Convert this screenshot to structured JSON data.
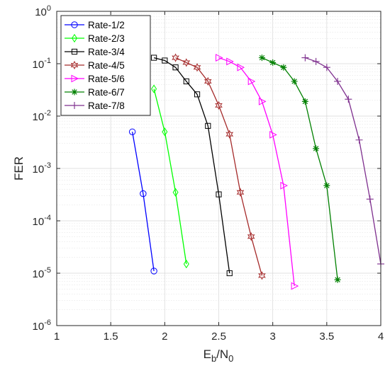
{
  "chart_data": {
    "type": "line",
    "xlabel": "E",
    "xlabel_sub_b": "b",
    "xlabel_mid": "/N",
    "xlabel_sub_0": "0",
    "ylabel": "FER",
    "xlim": [
      1,
      4
    ],
    "ylim_exponents": [
      -6,
      0
    ],
    "yscale": "log",
    "grid": true,
    "legend_placement": "top-left",
    "xticks": [
      "1",
      "1.5",
      "2",
      "2.5",
      "3",
      "3.5",
      "4"
    ],
    "yticks": [
      {
        "base": "10",
        "exp": "0"
      },
      {
        "base": "10",
        "exp": "-1"
      },
      {
        "base": "10",
        "exp": "-2"
      },
      {
        "base": "10",
        "exp": "-3"
      },
      {
        "base": "10",
        "exp": "-4"
      },
      {
        "base": "10",
        "exp": "-5"
      },
      {
        "base": "10",
        "exp": "-6"
      }
    ],
    "series": [
      {
        "name": "Rate-1/2",
        "color": "#0000FF",
        "marker": "circle",
        "x": [
          1.7,
          1.8,
          1.9
        ],
        "y": [
          0.005,
          0.00033,
          1.1e-05
        ]
      },
      {
        "name": "Rate-2/3",
        "color": "#00FF00",
        "marker": "diamond",
        "x": [
          1.9,
          2.0,
          2.1,
          2.2
        ],
        "y": [
          0.033,
          0.005,
          0.00035,
          1.5e-05
        ]
      },
      {
        "name": "Rate-3/4",
        "color": "#000000",
        "marker": "square",
        "x": [
          1.9,
          2.0,
          2.1,
          2.2,
          2.3,
          2.4,
          2.5,
          2.6
        ],
        "y": [
          0.13,
          0.115,
          0.085,
          0.046,
          0.026,
          0.0065,
          0.00032,
          1e-05
        ]
      },
      {
        "name": "Rate-4/5",
        "color": "#A52A2A",
        "marker": "hexagram",
        "x": [
          2.1,
          2.2,
          2.3,
          2.4,
          2.5,
          2.6,
          2.7,
          2.8,
          2.9
        ],
        "y": [
          0.13,
          0.105,
          0.085,
          0.046,
          0.016,
          0.0045,
          0.00035,
          5e-05,
          9e-06
        ]
      },
      {
        "name": "Rate-5/6",
        "color": "#FF00FF",
        "marker": "triangle-right",
        "x": [
          2.5,
          2.6,
          2.7,
          2.8,
          2.9,
          3.0,
          3.1,
          3.2
        ],
        "y": [
          0.13,
          0.11,
          0.085,
          0.046,
          0.019,
          0.0044,
          0.00047,
          5.7e-06
        ]
      },
      {
        "name": "Rate-6/7",
        "color": "#008000",
        "marker": "asterisk",
        "x": [
          2.9,
          3.0,
          3.1,
          3.2,
          3.3,
          3.4,
          3.5,
          3.6
        ],
        "y": [
          0.13,
          0.105,
          0.085,
          0.046,
          0.019,
          0.0024,
          0.00047,
          7.5e-06
        ]
      },
      {
        "name": "Rate-7/8",
        "color": "#7E2F8E",
        "marker": "plus",
        "x": [
          3.3,
          3.4,
          3.5,
          3.6,
          3.7,
          3.8,
          3.9,
          4.0
        ],
        "y": [
          0.13,
          0.11,
          0.085,
          0.046,
          0.021,
          0.0035,
          0.00026,
          1.5e-05
        ]
      }
    ]
  }
}
